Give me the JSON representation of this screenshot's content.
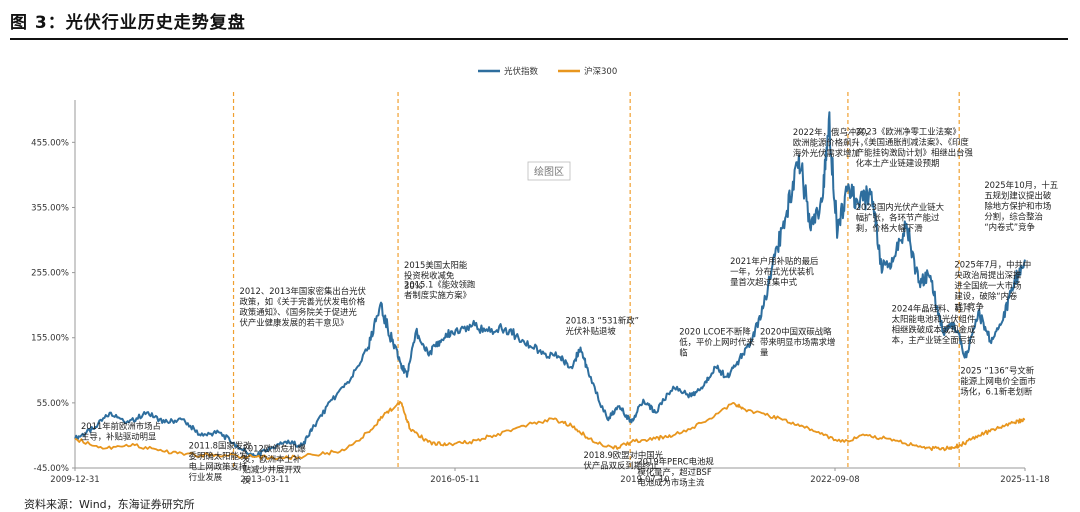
{
  "figure": {
    "title": "图 3：光伏行业历史走势复盘",
    "plot_area_label": "绘图区",
    "source_note": "资料来源：Wind，东海证券研究所"
  },
  "chart_data": {
    "type": "line",
    "title": "光伏行业历史走势复盘",
    "xlabel": "",
    "ylabel": "",
    "ylim": [
      -45,
      520
    ],
    "y_ticks": [
      -45,
      55,
      155,
      255,
      355,
      455
    ],
    "y_tick_labels": [
      "-45.00%",
      "55.00%",
      "155.00%",
      "255.00%",
      "355.00%",
      "455.00%"
    ],
    "x_tick_labels": [
      "2009-12-31",
      "2013-03-11",
      "2016-05-11",
      "2019-07-10",
      "2022-09-08",
      "2025-11-18"
    ],
    "x_range": [
      2010.0,
      2025.88
    ],
    "legend_position": "top-center",
    "series": [
      {
        "name": "光伏指数",
        "color": "#2e6e9e",
        "x": [
          2010.0,
          2010.3,
          2010.6,
          2010.9,
          2011.2,
          2011.5,
          2011.8,
          2012.1,
          2012.4,
          2012.7,
          2013.0,
          2013.2,
          2013.5,
          2013.8,
          2014.0,
          2014.3,
          2014.6,
          2014.9,
          2015.1,
          2015.3,
          2015.45,
          2015.55,
          2015.7,
          2015.9,
          2016.1,
          2016.3,
          2016.6,
          2016.9,
          2017.2,
          2017.5,
          2017.8,
          2018.1,
          2018.3,
          2018.45,
          2018.6,
          2018.9,
          2019.1,
          2019.3,
          2019.5,
          2019.7,
          2020.0,
          2020.3,
          2020.5,
          2020.7,
          2020.9,
          2021.1,
          2021.3,
          2021.5,
          2021.7,
          2021.9,
          2022.1,
          2022.3,
          2022.5,
          2022.6,
          2022.75,
          2022.9,
          2023.1,
          2023.3,
          2023.5,
          2023.7,
          2023.9,
          2024.1,
          2024.3,
          2024.5,
          2024.7,
          2024.9,
          2025.1,
          2025.3,
          2025.5,
          2025.7,
          2025.88
        ],
        "values": [
          0,
          15,
          40,
          25,
          40,
          25,
          30,
          5,
          10,
          -10,
          -28,
          -18,
          -5,
          -10,
          20,
          60,
          90,
          140,
          205,
          150,
          115,
          95,
          165,
          130,
          150,
          165,
          175,
          165,
          170,
          150,
          130,
          125,
          110,
          140,
          95,
          30,
          50,
          25,
          60,
          40,
          80,
          65,
          80,
          110,
          95,
          120,
          150,
          200,
          280,
          350,
          435,
          320,
          370,
          490,
          320,
          380,
          360,
          375,
          260,
          280,
          330,
          240,
          250,
          165,
          175,
          125,
          195,
          150,
          180,
          240,
          275
        ]
      },
      {
        "name": "沪深300",
        "color": "#e8961e",
        "x": [
          2010.0,
          2010.5,
          2011.0,
          2011.5,
          2012.0,
          2012.5,
          2013.0,
          2013.5,
          2014.0,
          2014.5,
          2014.9,
          2015.2,
          2015.45,
          2015.6,
          2015.9,
          2016.2,
          2016.6,
          2017.0,
          2017.5,
          2018.0,
          2018.3,
          2018.6,
          2019.0,
          2019.3,
          2019.7,
          2020.0,
          2020.5,
          2021.0,
          2021.2,
          2021.6,
          2022.0,
          2022.4,
          2022.8,
          2023.2,
          2023.6,
          2024.0,
          2024.3,
          2024.6,
          2024.8,
          2025.1,
          2025.4,
          2025.7,
          2025.88
        ],
        "values": [
          0,
          -15,
          -10,
          -20,
          -25,
          -25,
          -28,
          -30,
          -25,
          -18,
          10,
          40,
          55,
          15,
          -5,
          -10,
          -5,
          5,
          20,
          30,
          20,
          0,
          -15,
          -5,
          0,
          5,
          25,
          55,
          45,
          35,
          25,
          10,
          -5,
          5,
          0,
          -10,
          -15,
          -15,
          -10,
          5,
          15,
          25,
          30
        ]
      }
    ],
    "milestone_x": [
      2012.65,
      2015.4,
      2019.28,
      2022.92,
      2024.78
    ],
    "annotations": [
      {
        "id": "a2011",
        "x": 2010.1,
        "y": 15,
        "lines": [
          "2011年前欧洲市场占",
          "主导，补贴驱动明显"
        ]
      },
      {
        "id": "a2011b",
        "x": 2011.9,
        "y": -15,
        "lines": [
          "2011.8国家发改",
          "委明确太阳能发",
          "电上网政策支持",
          "行业发展"
        ]
      },
      {
        "id": "a2012",
        "x": 2012.8,
        "y": -20,
        "lines": [
          "2012欧债危机爆",
          "发，欧洲本土补",
          "贴减少并展开双",
          "反"
        ]
      },
      {
        "id": "a2012b",
        "x": 2012.75,
        "y": 222,
        "lines": [
          "2012、2013年国家密集出台光伏",
          "政策，如《关于完善光伏发电价格",
          "政策通知》、《国务院关于促进光",
          "伏产业健康发展的若干意见》"
        ]
      },
      {
        "id": "a2015a",
        "x": 2015.5,
        "y": 232,
        "lines": [
          "2015.1《能效领跑",
          "者制度实施方案》"
        ]
      },
      {
        "id": "a2015b",
        "x": 2015.5,
        "y": 262,
        "lines": [
          "2015美国太阳能",
          "投资税收减免",
          "30%"
        ]
      },
      {
        "id": "a2018",
        "x": 2018.2,
        "y": 177,
        "lines": [
          "2018.3 “531新政”",
          "光伏补贴退坡"
        ]
      },
      {
        "id": "a2018b",
        "x": 2018.5,
        "y": -30,
        "lines": [
          "2018.9欧盟对中国光",
          "伏产品双反到期终止"
        ]
      },
      {
        "id": "a2019",
        "x": 2019.4,
        "y": -40,
        "lines": [
          "2019年PERC电池规",
          "模化量产，超过BSF",
          "电池成为市场主流"
        ]
      },
      {
        "id": "a2020",
        "x": 2020.1,
        "y": 160,
        "lines": [
          "2020 LCOE不断降",
          "低，平价上网时代来",
          "临"
        ]
      },
      {
        "id": "a2020b",
        "x": 2021.45,
        "y": 160,
        "lines": [
          "2020中国双碳战略",
          "带来明显市场需求增",
          "量"
        ]
      },
      {
        "id": "a2021",
        "x": 2020.95,
        "y": 268,
        "lines": [
          "2021年户用补贴的最后",
          "一年，分布式光伏装机",
          "量首次超过集中式"
        ]
      },
      {
        "id": "a2022",
        "x": 2022.0,
        "y": 466,
        "lines": [
          "2022年，俄乌冲突，",
          "欧洲能源价格飙升，",
          "海外光伏需求增加"
        ]
      },
      {
        "id": "a2023",
        "x": 2023.05,
        "y": 467,
        "lines": [
          "2023《欧洲净零工业法案》",
          "、《美国通胀削减法案》、《印度",
          "产能挂钩激励计划》相继出台强",
          "化本土产业链建设预期"
        ]
      },
      {
        "id": "a2023b",
        "x": 2023.05,
        "y": 351,
        "lines": [
          "2023国内光伏产业链大",
          "幅扩张，各环节产能过",
          "剩，价格大幅下滑"
        ]
      },
      {
        "id": "a2024",
        "x": 2023.65,
        "y": 195,
        "lines": [
          "2024年晶硅料、硅片、",
          "太阳能电池和光伏组件",
          "相继跌破成本或现金成",
          "本，主产业链全面亏损"
        ]
      },
      {
        "id": "a2025a",
        "x": 2024.7,
        "y": 263,
        "lines": [
          "2025年7月，中共中",
          "央政治局提出深推",
          "进全国统一大市场",
          "建设，破除“内卷",
          "式”竞争"
        ]
      },
      {
        "id": "a2025b",
        "x": 2025.2,
        "y": 385,
        "lines": [
          "2025年10月，十五",
          "五规划建议提出破",
          "除地方保护和市场",
          "分割，综合整治",
          "“内卷式”竞争"
        ]
      },
      {
        "id": "a2025c",
        "x": 2024.8,
        "y": 100,
        "lines": [
          "2025 “136”号文新",
          "能源上网电价全面市",
          "场化，6.1新老划断"
        ]
      }
    ]
  }
}
